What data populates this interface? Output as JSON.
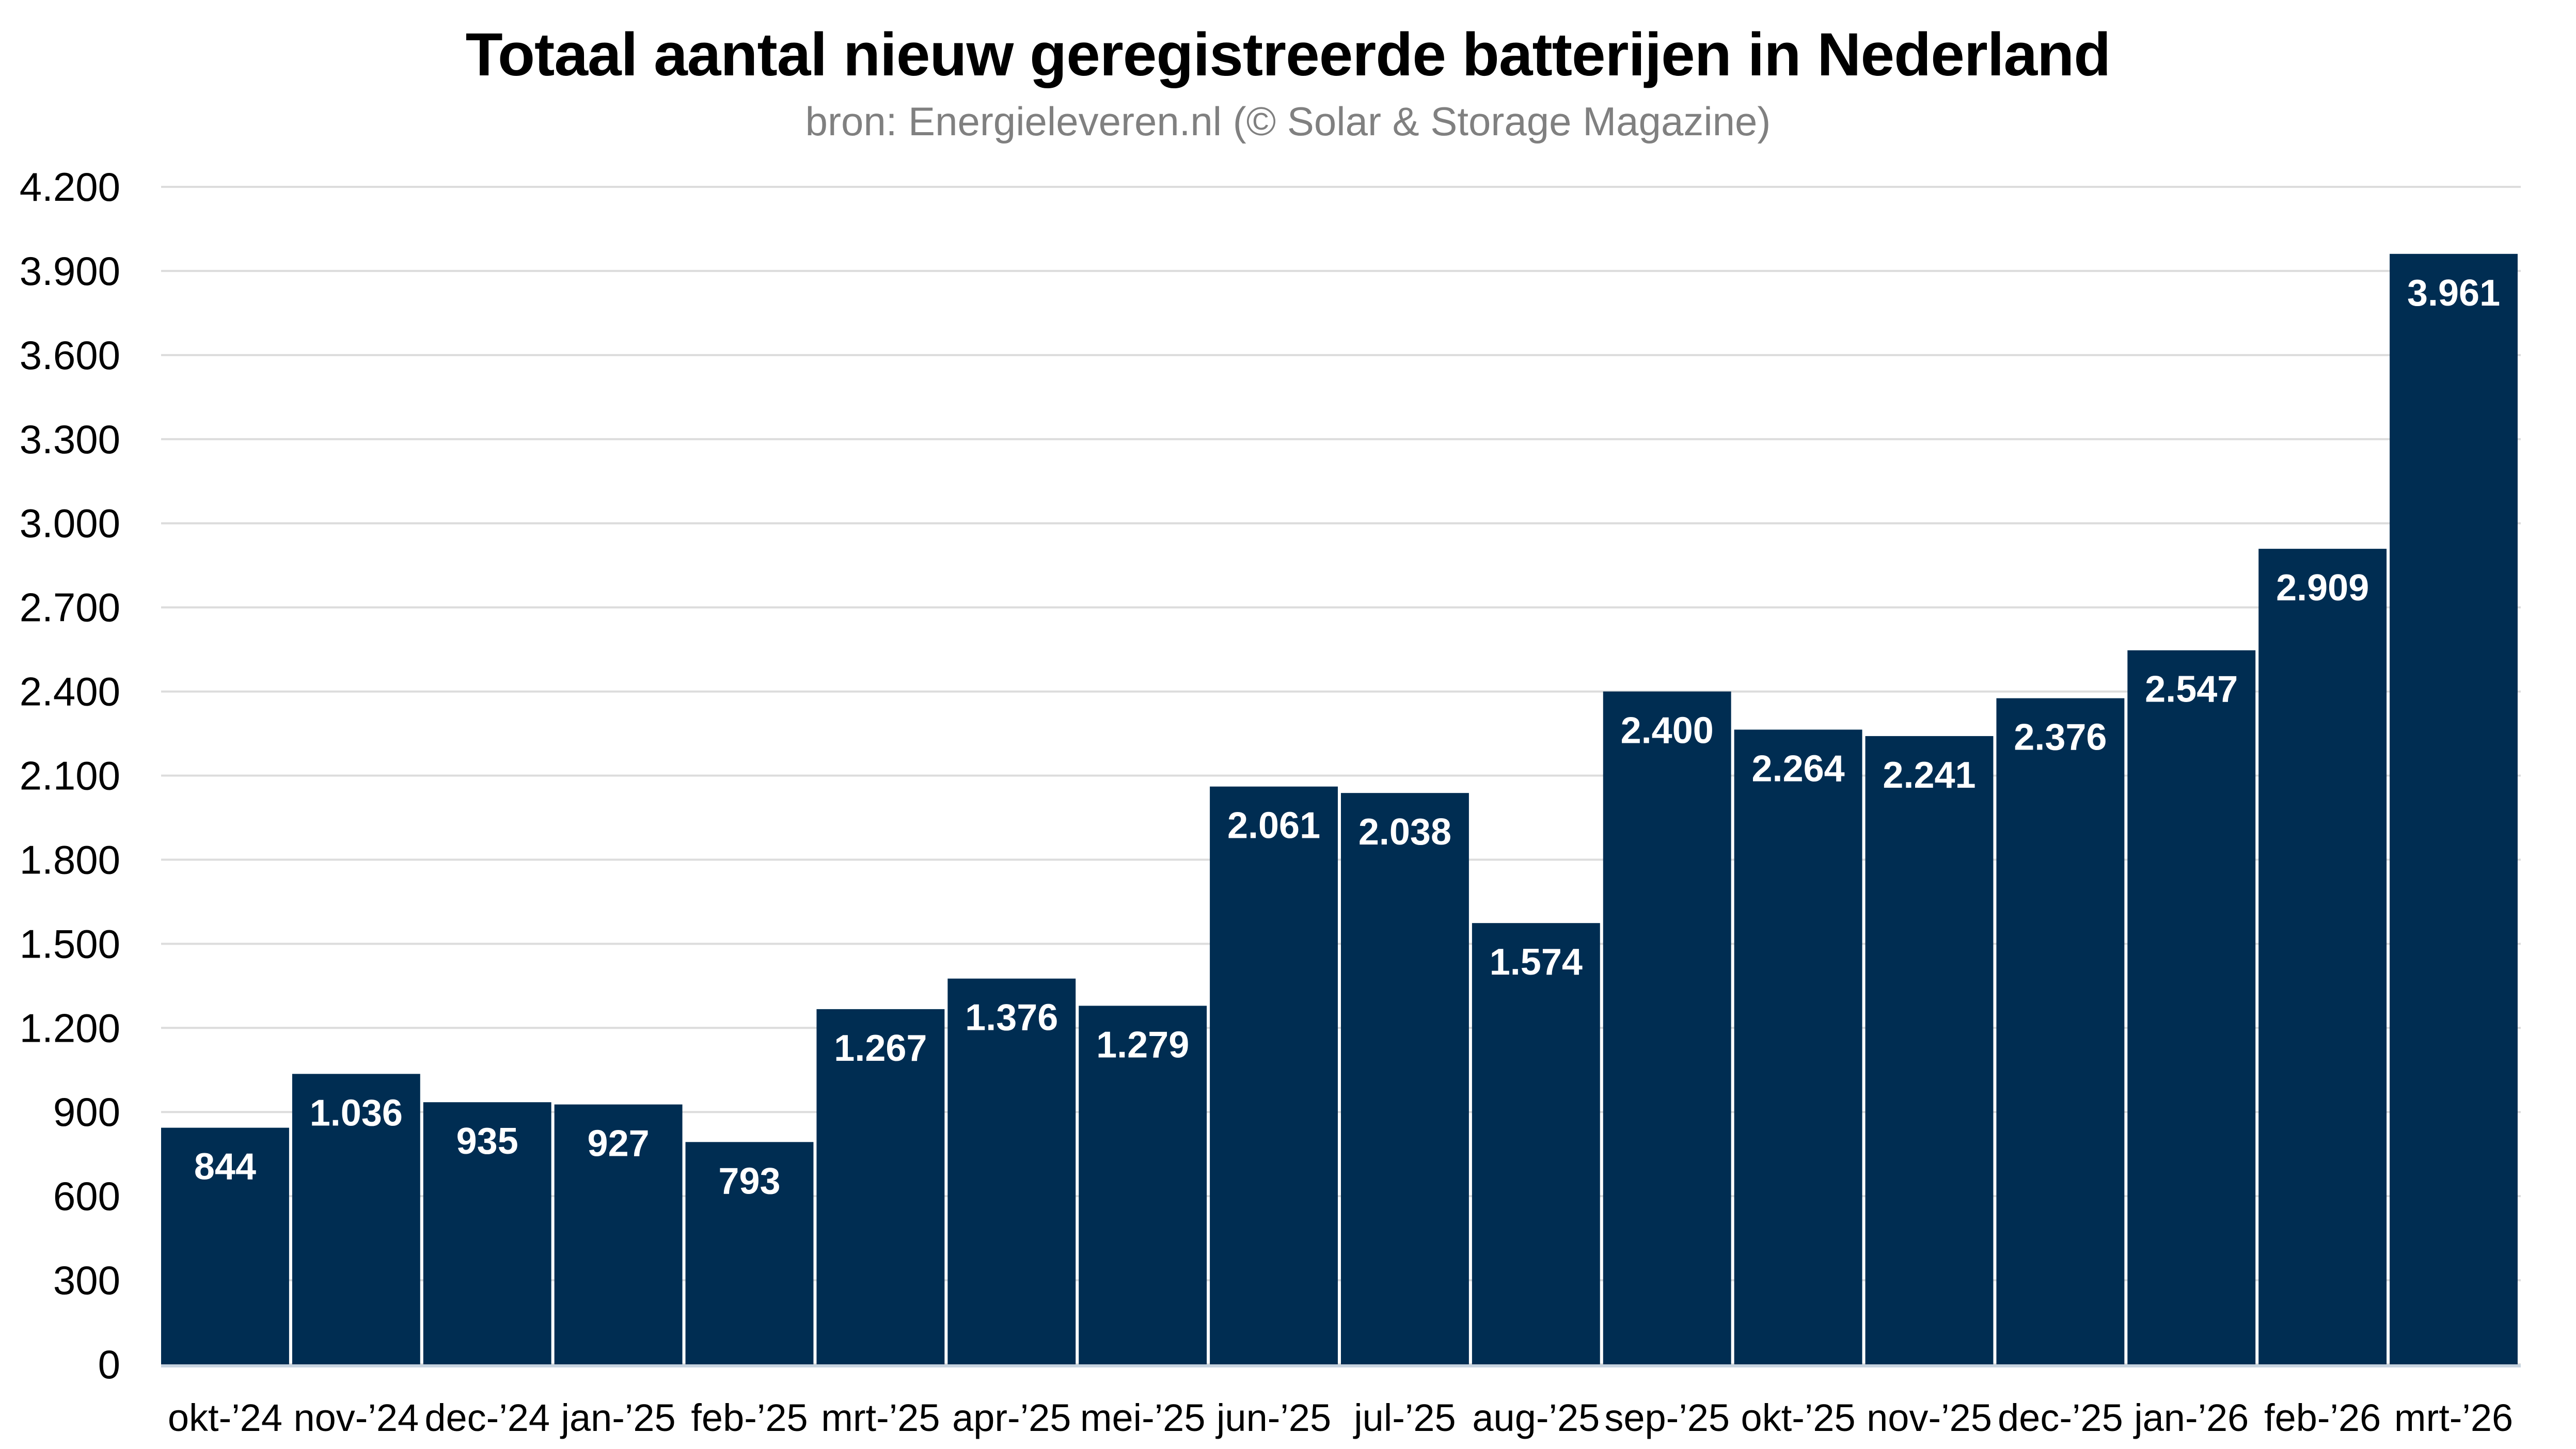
{
  "chart_data": {
    "type": "bar",
    "title": "Totaal aantal nieuw geregistreerde batterijen in Nederland",
    "subtitle": "bron: Energieleveren.nl (© Solar & Storage Magazine)",
    "xlabel": "",
    "ylabel": "",
    "ylim": [
      0,
      4200
    ],
    "yticks": [
      0,
      300,
      600,
      900,
      1200,
      1500,
      1800,
      2100,
      2400,
      2700,
      3000,
      3300,
      3600,
      3900,
      4200
    ],
    "ytick_labels": [
      "0",
      "300",
      "600",
      "900",
      "1.200",
      "1.500",
      "1.800",
      "2.100",
      "2.400",
      "2.700",
      "3.000",
      "3.300",
      "3.600",
      "3.900",
      "4.200"
    ],
    "grid": true,
    "legend": "none",
    "bar_color": "#002d52",
    "label_color": "#ffffff",
    "categories": [
      "okt-'24",
      "nov-'24",
      "dec-'24",
      "jan-'25",
      "feb-'25",
      "mrt-'25",
      "apr-'25",
      "mei-'25",
      "jun-'25",
      "jul-'25",
      "aug-'25",
      "sep-'25",
      "okt-'25",
      "nov-'25",
      "dec-'25",
      "jan-'26",
      "feb-'26",
      "mrt-'26"
    ],
    "values": [
      844,
      1036,
      935,
      927,
      793,
      1267,
      1376,
      1279,
      2061,
      2038,
      1574,
      2400,
      2264,
      2241,
      2376,
      2547,
      2909,
      3961
    ],
    "value_labels": [
      "844",
      "1.036",
      "935",
      "927",
      "793",
      "1.267",
      "1.376",
      "1.279",
      "2.061",
      "2.038",
      "1.574",
      "2.400",
      "2.264",
      "2.241",
      "2.376",
      "2.547",
      "2.909",
      "3.961"
    ]
  }
}
